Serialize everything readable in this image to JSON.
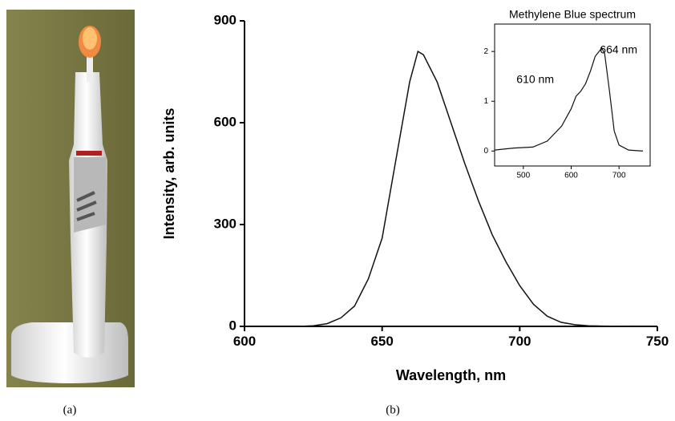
{
  "figure": {
    "captions": [
      "(a)",
      "(b)"
    ]
  },
  "chart_data": [
    {
      "type": "line",
      "x_label": "Wavelength, nm",
      "y_label": "Intensity, arb. units",
      "x": [
        620,
        625,
        630,
        635,
        640,
        645,
        650,
        655,
        660,
        663,
        665,
        670,
        675,
        680,
        685,
        690,
        695,
        700,
        705,
        710,
        715,
        720,
        725,
        730,
        740
      ],
      "values": [
        0,
        2,
        8,
        25,
        60,
        140,
        260,
        490,
        720,
        810,
        800,
        720,
        600,
        480,
        370,
        270,
        190,
        120,
        65,
        30,
        12,
        5,
        2,
        1,
        0
      ],
      "color": "#111111",
      "xlim": [
        600,
        750
      ],
      "xticks": [
        600,
        650,
        700,
        750
      ],
      "ylim": [
        0,
        900
      ],
      "yticks": [
        0,
        300,
        600,
        900
      ]
    },
    {
      "type": "line",
      "title": "Methylene Blue spectrum",
      "annotations": [
        "610 nm",
        "664 nm"
      ],
      "x": [
        440,
        480,
        520,
        550,
        580,
        600,
        610,
        620,
        630,
        640,
        650,
        664,
        670,
        680,
        690,
        700,
        720,
        750
      ],
      "values": [
        0.02,
        0.06,
        0.08,
        0.2,
        0.5,
        0.85,
        1.1,
        1.2,
        1.35,
        1.6,
        1.9,
        2.07,
        1.95,
        1.2,
        0.4,
        0.12,
        0.02,
        0
      ],
      "color": "#111111",
      "xlim": [
        440,
        765
      ],
      "xticks": [
        500,
        600,
        700
      ],
      "ylim": [
        -0.3,
        2.55
      ],
      "yticks": [
        0,
        1,
        2
      ]
    }
  ]
}
